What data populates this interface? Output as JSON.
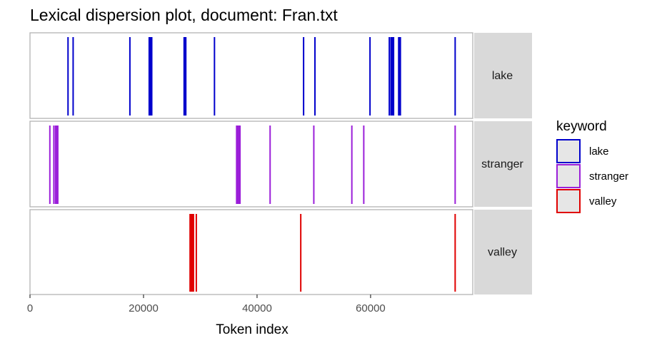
{
  "chart_data": {
    "type": "dispersion",
    "title": "Lexical dispersion plot, document: Fran.txt",
    "xlabel": "Token index",
    "xlim": [
      0,
      78000
    ],
    "xticks": [
      0,
      20000,
      40000,
      60000
    ],
    "xtick_labels": [
      "0",
      "20000",
      "40000",
      "60000"
    ],
    "legend": {
      "title": "keyword",
      "placement": "right",
      "items": [
        {
          "label": "lake",
          "color": "#0000cc"
        },
        {
          "label": "stranger",
          "color": "#9b1fd9"
        },
        {
          "label": "valley",
          "color": "#e00000"
        }
      ]
    },
    "panels": [
      {
        "keyword": "lake",
        "color": "#0000cc",
        "positions": [
          6700,
          7600,
          17600,
          21000,
          21150,
          21300,
          21450,
          27150,
          27300,
          27450,
          32500,
          48200,
          50200,
          59900,
          63300,
          63600,
          63750,
          63900,
          64050,
          64950,
          65100,
          65250,
          74900
        ]
      },
      {
        "keyword": "stranger",
        "color": "#9b1fd9",
        "positions": [
          3500,
          4200,
          4500,
          4700,
          4900,
          36400,
          36550,
          36700,
          36850,
          37000,
          42300,
          50000,
          56700,
          58800,
          74900
        ]
      },
      {
        "keyword": "valley",
        "color": "#e00000",
        "positions": [
          28200,
          28350,
          28500,
          28650,
          28800,
          29300,
          47700,
          74900
        ]
      }
    ]
  }
}
